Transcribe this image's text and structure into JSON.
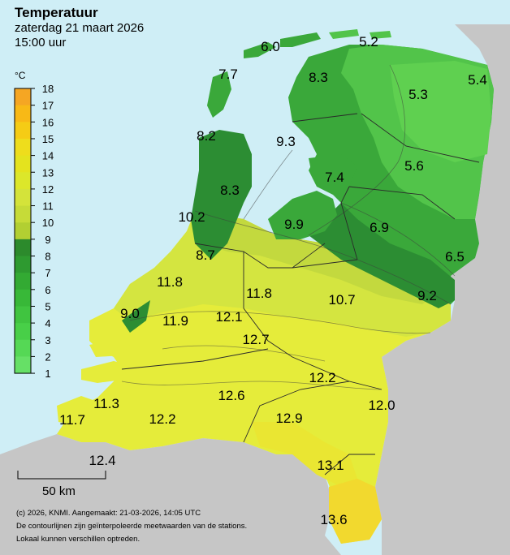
{
  "header": {
    "title": "Temperatuur",
    "date": "zaterdag 21 maart 2026",
    "time": "15:00 uur"
  },
  "legend": {
    "unit": "°C",
    "ticks": [
      "18",
      "17",
      "16",
      "15",
      "14",
      "13",
      "12",
      "11",
      "10",
      "9",
      "8",
      "7",
      "6",
      "5",
      "4",
      "3",
      "2",
      "1"
    ],
    "colors": [
      "#f5a623",
      "#f8b916",
      "#f5cc15",
      "#eedd1c",
      "#e4e31e",
      "#dce72a",
      "#d4e33a",
      "#c6db38",
      "#b2cf32",
      "#2c8a2c",
      "#2e9a30",
      "#33aa33",
      "#38b838",
      "#40c440",
      "#48cf48",
      "#55d855",
      "#66e066"
    ]
  },
  "map": {
    "colors": {
      "sea": "#cfeef6",
      "foreign": "#c6c6c6",
      "warm_south": "#e5ec3a",
      "warmest": "#eae632",
      "south_limburg": "#f2d92e",
      "mid": "#d4e540",
      "mid_transition": "#c3d93e",
      "green_dark": "#2c8d33",
      "green_mid": "#3aa83a",
      "green_light": "#52c44a",
      "green_pale": "#5fd050"
    },
    "labels": [
      {
        "id": "t1",
        "text": "6.0"
      },
      {
        "id": "t2",
        "text": "5.2"
      },
      {
        "id": "t3",
        "text": "7.7"
      },
      {
        "id": "t4",
        "text": "8.3"
      },
      {
        "id": "t5",
        "text": "5.4"
      },
      {
        "id": "t6",
        "text": "5.3"
      },
      {
        "id": "t7",
        "text": "8.2"
      },
      {
        "id": "t8",
        "text": "9.3"
      },
      {
        "id": "t9",
        "text": "7.4"
      },
      {
        "id": "t10",
        "text": "5.6"
      },
      {
        "id": "t11",
        "text": "8.3"
      },
      {
        "id": "t12",
        "text": "10.2"
      },
      {
        "id": "t13",
        "text": "9.9"
      },
      {
        "id": "t14",
        "text": "6.9"
      },
      {
        "id": "t15",
        "text": "8.7"
      },
      {
        "id": "t16",
        "text": "6.5"
      },
      {
        "id": "t17",
        "text": "11.8"
      },
      {
        "id": "t18",
        "text": "11.8"
      },
      {
        "id": "t19",
        "text": "10.7"
      },
      {
        "id": "t20",
        "text": "9.2"
      },
      {
        "id": "t21",
        "text": "9.0"
      },
      {
        "id": "t22",
        "text": "11.9"
      },
      {
        "id": "t23",
        "text": "12.1"
      },
      {
        "id": "t24",
        "text": "12.7"
      },
      {
        "id": "t25",
        "text": "12.2"
      },
      {
        "id": "t26",
        "text": "11.3"
      },
      {
        "id": "t27",
        "text": "12.6"
      },
      {
        "id": "t28",
        "text": "12.0"
      },
      {
        "id": "t29",
        "text": "11.7"
      },
      {
        "id": "t30",
        "text": "12.2"
      },
      {
        "id": "t31",
        "text": "12.9"
      },
      {
        "id": "t32",
        "text": "12.4"
      },
      {
        "id": "t33",
        "text": "13.1"
      },
      {
        "id": "t34",
        "text": "13.6"
      }
    ]
  },
  "scale": {
    "label": "50 km"
  },
  "footer": {
    "line1": "(c) 2026, KNMI. Aangemaakt: 21-03-2026, 14:05 UTC",
    "line2": "De contourlijnen zijn geïnterpoleerde meetwaarden van de stations.",
    "line3": "Lokaal kunnen verschillen optreden."
  }
}
